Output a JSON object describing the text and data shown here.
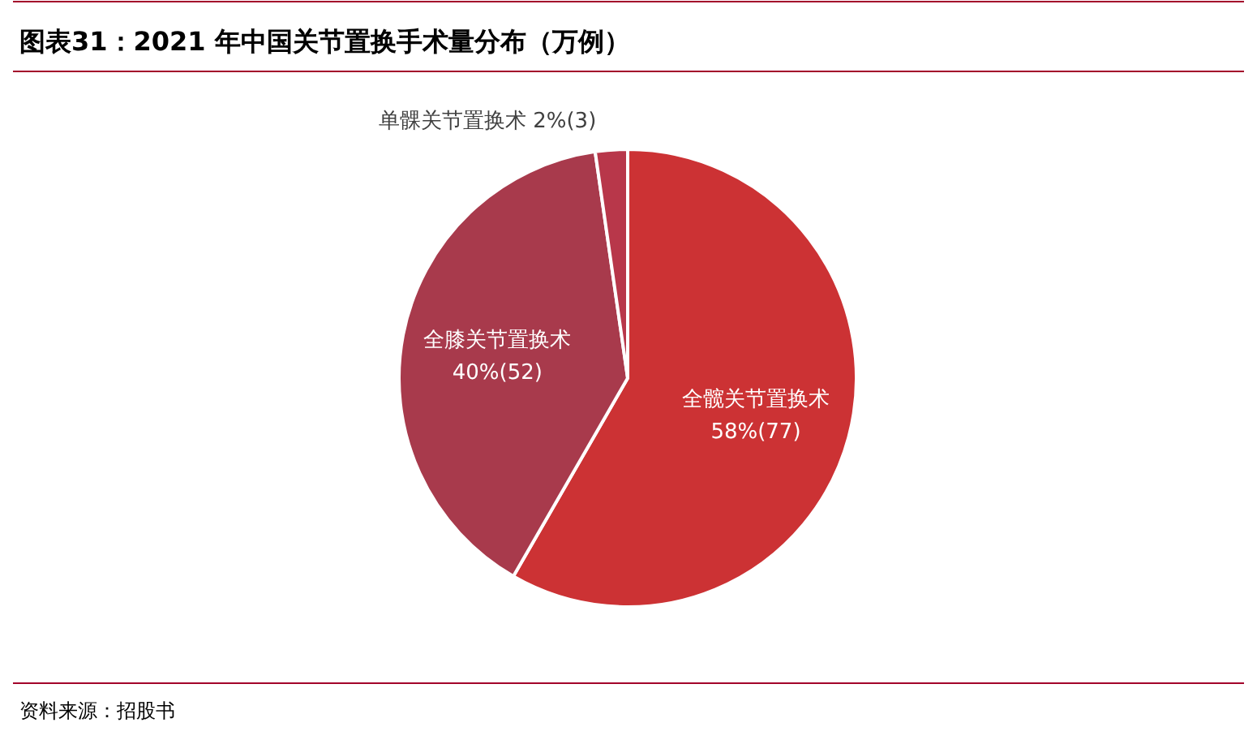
{
  "chart_data": {
    "type": "pie",
    "title": "图表31：2021 年中国关节置换手术量分布（万例）",
    "categories": [
      "全髋关节置换术",
      "全膝关节置换术",
      "单髁关节置换术"
    ],
    "values": [
      77,
      52,
      3
    ],
    "value_labels": [
      "58%(77)",
      "40%(52)",
      "2%(3)"
    ],
    "colors": [
      "#cc3234",
      "#a83a4c",
      "#b8374a"
    ],
    "annotations": [
      "资料来源：招股书"
    ]
  }
}
